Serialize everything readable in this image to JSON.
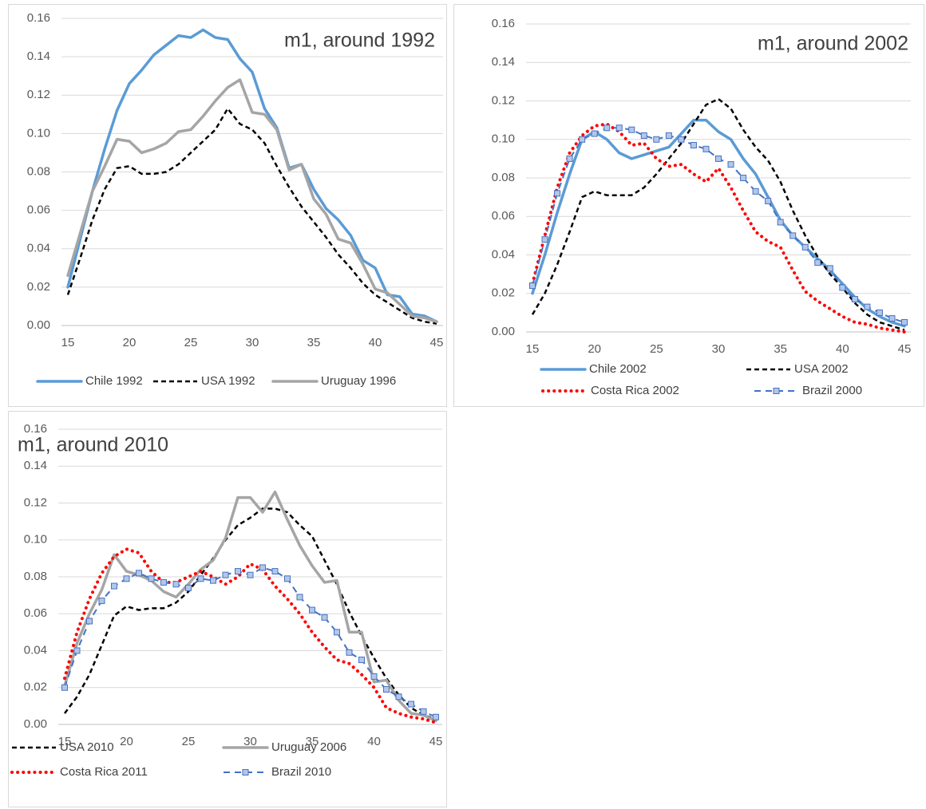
{
  "chart_data": [
    {
      "type": "line",
      "title": "m1, around 1992",
      "legend": "bottom",
      "grid": true,
      "x": [
        15,
        16,
        17,
        18,
        19,
        20,
        21,
        22,
        23,
        24,
        25,
        26,
        27,
        28,
        29,
        30,
        31,
        32,
        33,
        34,
        35,
        36,
        37,
        38,
        39,
        40,
        41,
        42,
        43,
        44,
        45
      ],
      "xlim": [
        15,
        45
      ],
      "xticks": [
        15,
        20,
        25,
        30,
        35,
        40,
        45
      ],
      "ylim": [
        0,
        0.16
      ],
      "yticks": [
        {
          "value": 0,
          "label": "0.00"
        },
        {
          "value": 0.02,
          "label": "0.02"
        },
        {
          "value": 0.04,
          "label": "0.04"
        },
        {
          "value": 0.06,
          "label": "0.06"
        },
        {
          "value": 0.08,
          "label": "0.08"
        },
        {
          "value": 0.1,
          "label": "0.10"
        },
        {
          "value": 0.12,
          "label": "0.12"
        },
        {
          "value": 0.14,
          "label": "0.14"
        },
        {
          "value": 0.16,
          "label": "0.16"
        }
      ],
      "series": [
        {
          "name": "Chile 1992",
          "color": "#5b9bd5",
          "line_style": "solid",
          "values": [
            0.02,
            0.045,
            0.07,
            0.092,
            0.112,
            0.126,
            0.133,
            0.141,
            0.146,
            0.151,
            0.15,
            0.154,
            0.15,
            0.149,
            0.139,
            0.132,
            0.113,
            0.103,
            0.082,
            0.084,
            0.071,
            0.061,
            0.055,
            0.047,
            0.034,
            0.03,
            0.016,
            0.015,
            0.006,
            0.005,
            0.002
          ]
        },
        {
          "name": "USA 1992",
          "color": "#000000",
          "line_style": "dash",
          "values": [
            0.016,
            0.035,
            0.055,
            0.071,
            0.082,
            0.083,
            0.079,
            0.079,
            0.08,
            0.084,
            0.09,
            0.096,
            0.102,
            0.113,
            0.105,
            0.102,
            0.095,
            0.083,
            0.072,
            0.062,
            0.054,
            0.046,
            0.037,
            0.03,
            0.022,
            0.016,
            0.012,
            0.008,
            0.004,
            0.002,
            0.001
          ]
        },
        {
          "name": "Uruguay 1996",
          "color": "#a5a5a5",
          "line_style": "solid",
          "values": [
            0.026,
            0.048,
            0.07,
            0.083,
            0.097,
            0.096,
            0.09,
            0.092,
            0.095,
            0.101,
            0.102,
            0.109,
            0.117,
            0.124,
            0.128,
            0.111,
            0.11,
            0.102,
            0.081,
            0.084,
            0.066,
            0.058,
            0.045,
            0.043,
            0.032,
            0.019,
            0.017,
            0.011,
            0.005,
            0.004,
            0.002
          ]
        }
      ]
    },
    {
      "type": "line",
      "title": "m1, around 2002",
      "legend": "bottom",
      "grid": true,
      "x": [
        15,
        16,
        17,
        18,
        19,
        20,
        21,
        22,
        23,
        24,
        25,
        26,
        27,
        28,
        29,
        30,
        31,
        32,
        33,
        34,
        35,
        36,
        37,
        38,
        39,
        40,
        41,
        42,
        43,
        44,
        45
      ],
      "xlim": [
        15,
        45
      ],
      "xticks": [
        15,
        20,
        25,
        30,
        35,
        40,
        45
      ],
      "ylim": [
        0,
        0.16
      ],
      "yticks": [
        {
          "value": 0,
          "label": "0.00"
        },
        {
          "value": 0.02,
          "label": "0.02"
        },
        {
          "value": 0.04,
          "label": "0.04"
        },
        {
          "value": 0.06,
          "label": "0.06"
        },
        {
          "value": 0.08,
          "label": "0.08"
        },
        {
          "value": 0.1,
          "label": "0.10"
        },
        {
          "value": 0.12,
          "label": "0.12"
        },
        {
          "value": 0.14,
          "label": "0.14"
        },
        {
          "value": 0.16,
          "label": "0.16"
        }
      ],
      "series": [
        {
          "name": "Chile 2002",
          "color": "#5b9bd5",
          "line_style": "solid",
          "values": [
            0.02,
            0.04,
            0.062,
            0.082,
            0.1,
            0.104,
            0.1,
            0.093,
            0.09,
            0.092,
            0.094,
            0.096,
            0.103,
            0.11,
            0.11,
            0.104,
            0.1,
            0.09,
            0.082,
            0.07,
            0.058,
            0.05,
            0.044,
            0.038,
            0.032,
            0.025,
            0.018,
            0.012,
            0.008,
            0.005,
            0.003
          ]
        },
        {
          "name": "USA 2002",
          "color": "#000000",
          "line_style": "dash",
          "values": [
            0.009,
            0.02,
            0.035,
            0.052,
            0.07,
            0.073,
            0.071,
            0.071,
            0.071,
            0.075,
            0.082,
            0.09,
            0.098,
            0.108,
            0.118,
            0.121,
            0.116,
            0.105,
            0.096,
            0.089,
            0.078,
            0.063,
            0.05,
            0.039,
            0.03,
            0.023,
            0.015,
            0.009,
            0.005,
            0.003,
            0.001
          ]
        },
        {
          "name": "Costa Rica 2002",
          "color": "#ff0000",
          "line_style": "dot",
          "values": [
            0.025,
            0.05,
            0.075,
            0.093,
            0.102,
            0.107,
            0.108,
            0.104,
            0.097,
            0.098,
            0.09,
            0.086,
            0.087,
            0.082,
            0.078,
            0.085,
            0.075,
            0.063,
            0.052,
            0.047,
            0.044,
            0.032,
            0.021,
            0.016,
            0.012,
            0.008,
            0.005,
            0.004,
            0.002,
            0.001,
            0
          ]
        },
        {
          "name": "Brazil 2000",
          "color": "#4472c4",
          "line_style": "dash",
          "marker": "square",
          "values": [
            0.024,
            0.048,
            0.072,
            0.09,
            0.1,
            0.103,
            0.106,
            0.106,
            0.105,
            0.102,
            0.1,
            0.102,
            0.1,
            0.097,
            0.095,
            0.09,
            0.087,
            0.08,
            0.073,
            0.068,
            0.057,
            0.05,
            0.044,
            0.036,
            0.033,
            0.023,
            0.017,
            0.013,
            0.01,
            0.007,
            0.005
          ]
        }
      ]
    },
    {
      "type": "line",
      "title": "m1, around 2010",
      "legend": "bottom",
      "grid": true,
      "x": [
        15,
        16,
        17,
        18,
        19,
        20,
        21,
        22,
        23,
        24,
        25,
        26,
        27,
        28,
        29,
        30,
        31,
        32,
        33,
        34,
        35,
        36,
        37,
        38,
        39,
        40,
        41,
        42,
        43,
        44,
        45
      ],
      "xlim": [
        15,
        45
      ],
      "xticks": [
        15,
        20,
        25,
        30,
        35,
        40,
        45
      ],
      "ylim": [
        0,
        0.16
      ],
      "yticks": [
        {
          "value": 0,
          "label": "0.00"
        },
        {
          "value": 0.02,
          "label": "0.02"
        },
        {
          "value": 0.04,
          "label": "0.04"
        },
        {
          "value": 0.06,
          "label": "0.06"
        },
        {
          "value": 0.08,
          "label": "0.08"
        },
        {
          "value": 0.1,
          "label": "0.10"
        },
        {
          "value": 0.12,
          "label": "0.12"
        },
        {
          "value": 0.14,
          "label": "0.14"
        },
        {
          "value": 0.16,
          "label": "0.16"
        }
      ],
      "series": [
        {
          "name": "USA 2010",
          "color": "#000000",
          "line_style": "dash",
          "values": [
            0.006,
            0.015,
            0.027,
            0.043,
            0.059,
            0.064,
            0.062,
            0.063,
            0.063,
            0.066,
            0.072,
            0.081,
            0.09,
            0.1,
            0.108,
            0.112,
            0.117,
            0.117,
            0.115,
            0.108,
            0.102,
            0.089,
            0.076,
            0.061,
            0.048,
            0.036,
            0.025,
            0.016,
            0.009,
            0.005,
            0.003
          ]
        },
        {
          "name": "Uruguay 2006",
          "color": "#a5a5a5",
          "line_style": "solid",
          "values": [
            0.021,
            0.044,
            0.06,
            0.073,
            0.092,
            0.083,
            0.081,
            0.078,
            0.072,
            0.069,
            0.076,
            0.084,
            0.089,
            0.101,
            0.123,
            0.123,
            0.115,
            0.126,
            0.111,
            0.097,
            0.086,
            0.077,
            0.078,
            0.05,
            0.05,
            0.023,
            0.024,
            0.013,
            0.006,
            0.005,
            0.002
          ]
        },
        {
          "name": "Costa Rica 2011",
          "color": "#ff0000",
          "line_style": "dot",
          "values": [
            0.025,
            0.05,
            0.068,
            0.082,
            0.091,
            0.095,
            0.093,
            0.083,
            0.077,
            0.077,
            0.08,
            0.083,
            0.08,
            0.076,
            0.08,
            0.087,
            0.084,
            0.075,
            0.068,
            0.06,
            0.05,
            0.042,
            0.035,
            0.033,
            0.027,
            0.02,
            0.009,
            0.006,
            0.004,
            0.003,
            0.001
          ]
        },
        {
          "name": "Brazil 2010",
          "color": "#4472c4",
          "line_style": "dash",
          "marker": "square",
          "values": [
            0.02,
            0.04,
            0.056,
            0.067,
            0.075,
            0.079,
            0.082,
            0.079,
            0.077,
            0.076,
            0.074,
            0.079,
            0.078,
            0.081,
            0.083,
            0.081,
            0.085,
            0.083,
            0.079,
            0.069,
            0.062,
            0.058,
            0.05,
            0.039,
            0.035,
            0.026,
            0.019,
            0.015,
            0.011,
            0.007,
            0.004
          ]
        }
      ]
    }
  ]
}
